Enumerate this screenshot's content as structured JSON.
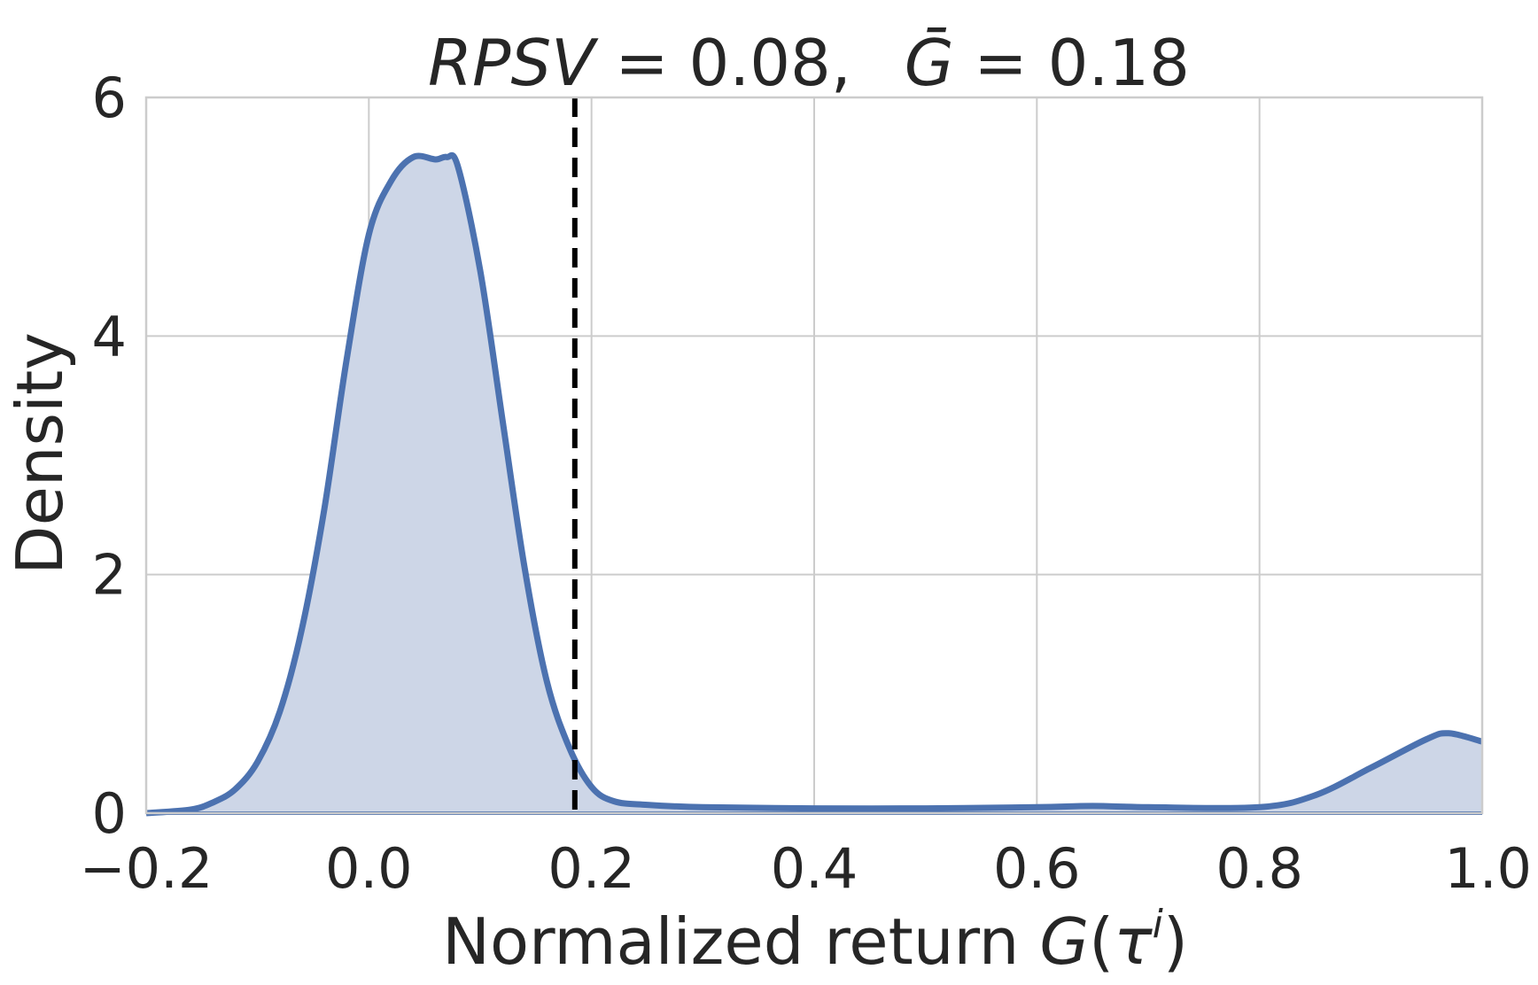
{
  "chart_data": {
    "type": "area",
    "title_parts": {
      "rpsv_symbol": "RPSV",
      "rpsv_equals": " = 0.08,",
      "gbar_symbol": "Ḡ",
      "gbar_equals": " = 0.18"
    },
    "xlabel_text": "Normalized return ",
    "xlabel_symbol": "G",
    "xlabel_open": "(",
    "xlabel_tau": "τ",
    "xlabel_sup": "i",
    "xlabel_close": ")",
    "ylabel": "Density",
    "xlim": [
      -0.2,
      1.0
    ],
    "ylim": [
      0,
      6
    ],
    "xticks": [
      -0.2,
      0.0,
      0.2,
      0.4,
      0.6,
      0.8,
      1.0
    ],
    "xtick_labels": [
      "−0.2",
      "0.0",
      "0.2",
      "0.4",
      "0.6",
      "0.8",
      "1.0"
    ],
    "yticks": [
      0,
      2,
      4,
      6
    ],
    "ytick_labels": [
      "0",
      "2",
      "4",
      "6"
    ],
    "grid": true,
    "mean_line_x": 0.185,
    "series": [
      {
        "x": [
          -0.2,
          -0.16,
          -0.14,
          -0.12,
          -0.1,
          -0.08,
          -0.06,
          -0.04,
          -0.02,
          0.0,
          0.02,
          0.04,
          0.06,
          0.07,
          0.08,
          0.1,
          0.12,
          0.14,
          0.16,
          0.18,
          0.2,
          0.22,
          0.25,
          0.3,
          0.4,
          0.5,
          0.6,
          0.65,
          0.7,
          0.8,
          0.85,
          0.9,
          0.95,
          0.97,
          1.0
        ],
        "y": [
          0.0,
          0.03,
          0.09,
          0.2,
          0.43,
          0.85,
          1.55,
          2.55,
          3.8,
          4.85,
          5.3,
          5.5,
          5.48,
          5.5,
          5.42,
          4.55,
          3.3,
          2.05,
          1.1,
          0.55,
          0.22,
          0.1,
          0.07,
          0.05,
          0.04,
          0.04,
          0.05,
          0.06,
          0.05,
          0.05,
          0.15,
          0.38,
          0.62,
          0.67,
          0.6
        ],
        "line_color": "#4c72b0",
        "fill_color": "#cdd6e7"
      }
    ],
    "mean_line_color": "#000000"
  }
}
